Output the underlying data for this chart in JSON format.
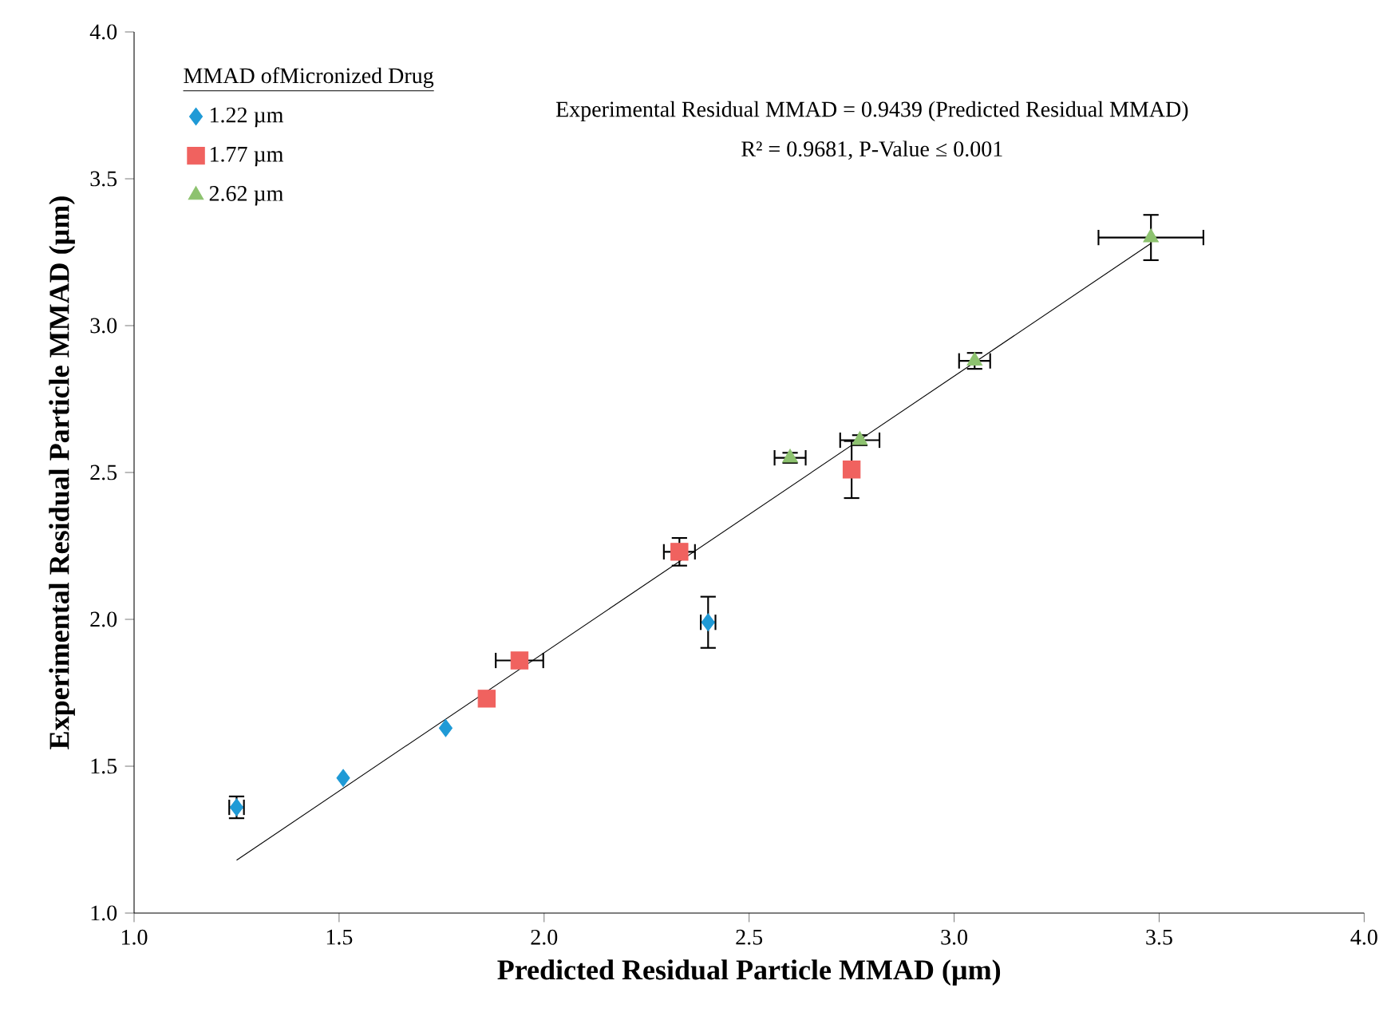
{
  "chart_data": {
    "type": "scatter",
    "xlabel": "Predicted Residual Particle MMAD (µm)",
    "ylabel": "Experimental Residual Particle MMAD (µm)",
    "legend_title": "MMAD ofMicronized Drug",
    "annotations": [
      "Experimental  Residual MMAD = 0.9439 (Predicted Residual MMAD)",
      "R² = 0.9681, P-Value ≤ 0.001"
    ],
    "series": [
      {
        "name": "1.22 µm",
        "color": "#1f9ad6",
        "marker": "diamond",
        "x": [
          1.25,
          1.51,
          1.76,
          2.4
        ],
        "values": [
          1.36,
          1.46,
          1.63,
          1.99
        ],
        "errors": [
          0.04,
          null,
          null,
          0.09
        ],
        "xerrors": [
          0.02,
          null,
          null,
          0.02
        ]
      },
      {
        "name": "1.77 µm",
        "color": "#f0625f",
        "marker": "square",
        "x": [
          1.86,
          1.94,
          2.33,
          2.75
        ],
        "values": [
          1.73,
          1.86,
          2.23,
          2.51
        ],
        "errors": [
          null,
          null,
          0.05,
          0.1
        ],
        "xerrors": [
          null,
          0.06,
          0.04,
          null
        ]
      },
      {
        "name": "2.62 µm",
        "color": "#8dc26f",
        "marker": "triangle",
        "x": [
          2.6,
          2.77,
          3.05,
          3.48
        ],
        "values": [
          2.55,
          2.61,
          2.88,
          3.3
        ],
        "errors": [
          0.02,
          0.02,
          0.03,
          0.08
        ],
        "xerrors": [
          0.04,
          0.05,
          0.04,
          0.13
        ]
      },
      {
        "type": "line",
        "color": "#000000",
        "marker": "none",
        "x": [
          1.25,
          3.48
        ],
        "values": [
          1.18,
          3.28
        ]
      }
    ],
    "xlim": [
      1,
      4
    ],
    "ylim": [
      1,
      4
    ],
    "xticks": [
      {
        "value": 1,
        "label": "1.0"
      },
      {
        "value": 1.5,
        "label": "1.5"
      },
      {
        "value": 2,
        "label": "2.0"
      },
      {
        "value": 2.5,
        "label": "2.5"
      },
      {
        "value": 3,
        "label": "3.0"
      },
      {
        "value": 3.5,
        "label": "3.5"
      },
      {
        "value": 4,
        "label": "4.0"
      }
    ],
    "yticks": [
      {
        "value": 1,
        "label": "1.0"
      },
      {
        "value": 1.5,
        "label": "1.5"
      },
      {
        "value": 2,
        "label": "2.0"
      },
      {
        "value": 2.5,
        "label": "2.5"
      },
      {
        "value": 3,
        "label": "3.0"
      },
      {
        "value": 3.5,
        "label": "3.5"
      },
      {
        "value": 4,
        "label": "4.0"
      }
    ],
    "grid": false,
    "legend": "top left"
  }
}
